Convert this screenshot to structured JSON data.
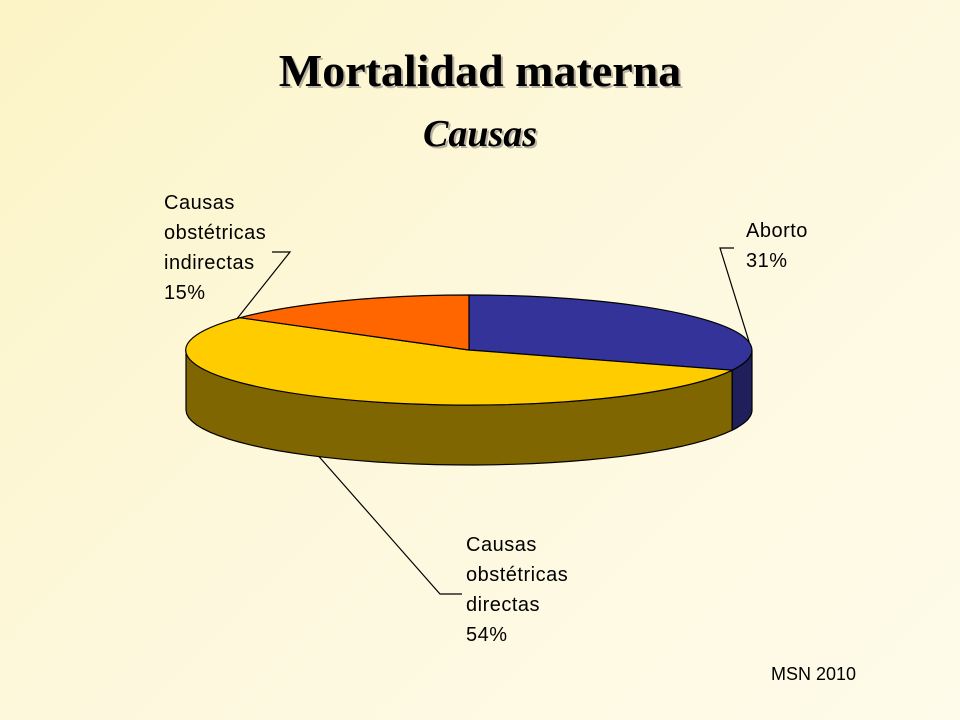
{
  "slide": {
    "title": "Mortalidad materna",
    "subtitle": "Causas",
    "footer": "MSN 2010"
  },
  "chart_data": {
    "type": "pie",
    "title": "Mortalidad materna",
    "subtitle": "Causas",
    "three_d": true,
    "categories": [
      "Aborto",
      "Causas obstétricas directas",
      "Causas obstétricas indirectas"
    ],
    "values": [
      31,
      54,
      15
    ],
    "unit": "%",
    "colors": [
      "#333399",
      "#FFCC00",
      "#FF6600"
    ],
    "side_colors": [
      "#1f1f5c",
      "#7f6600",
      "#7f3300"
    ],
    "labels": [
      {
        "lines": [
          "Aborto",
          "31%"
        ]
      },
      {
        "lines": [
          "Causas",
          "obstétricas",
          "directas",
          "54%"
        ]
      },
      {
        "lines": [
          "Causas",
          "obstétricas",
          "indirectas",
          "15%"
        ]
      }
    ]
  }
}
